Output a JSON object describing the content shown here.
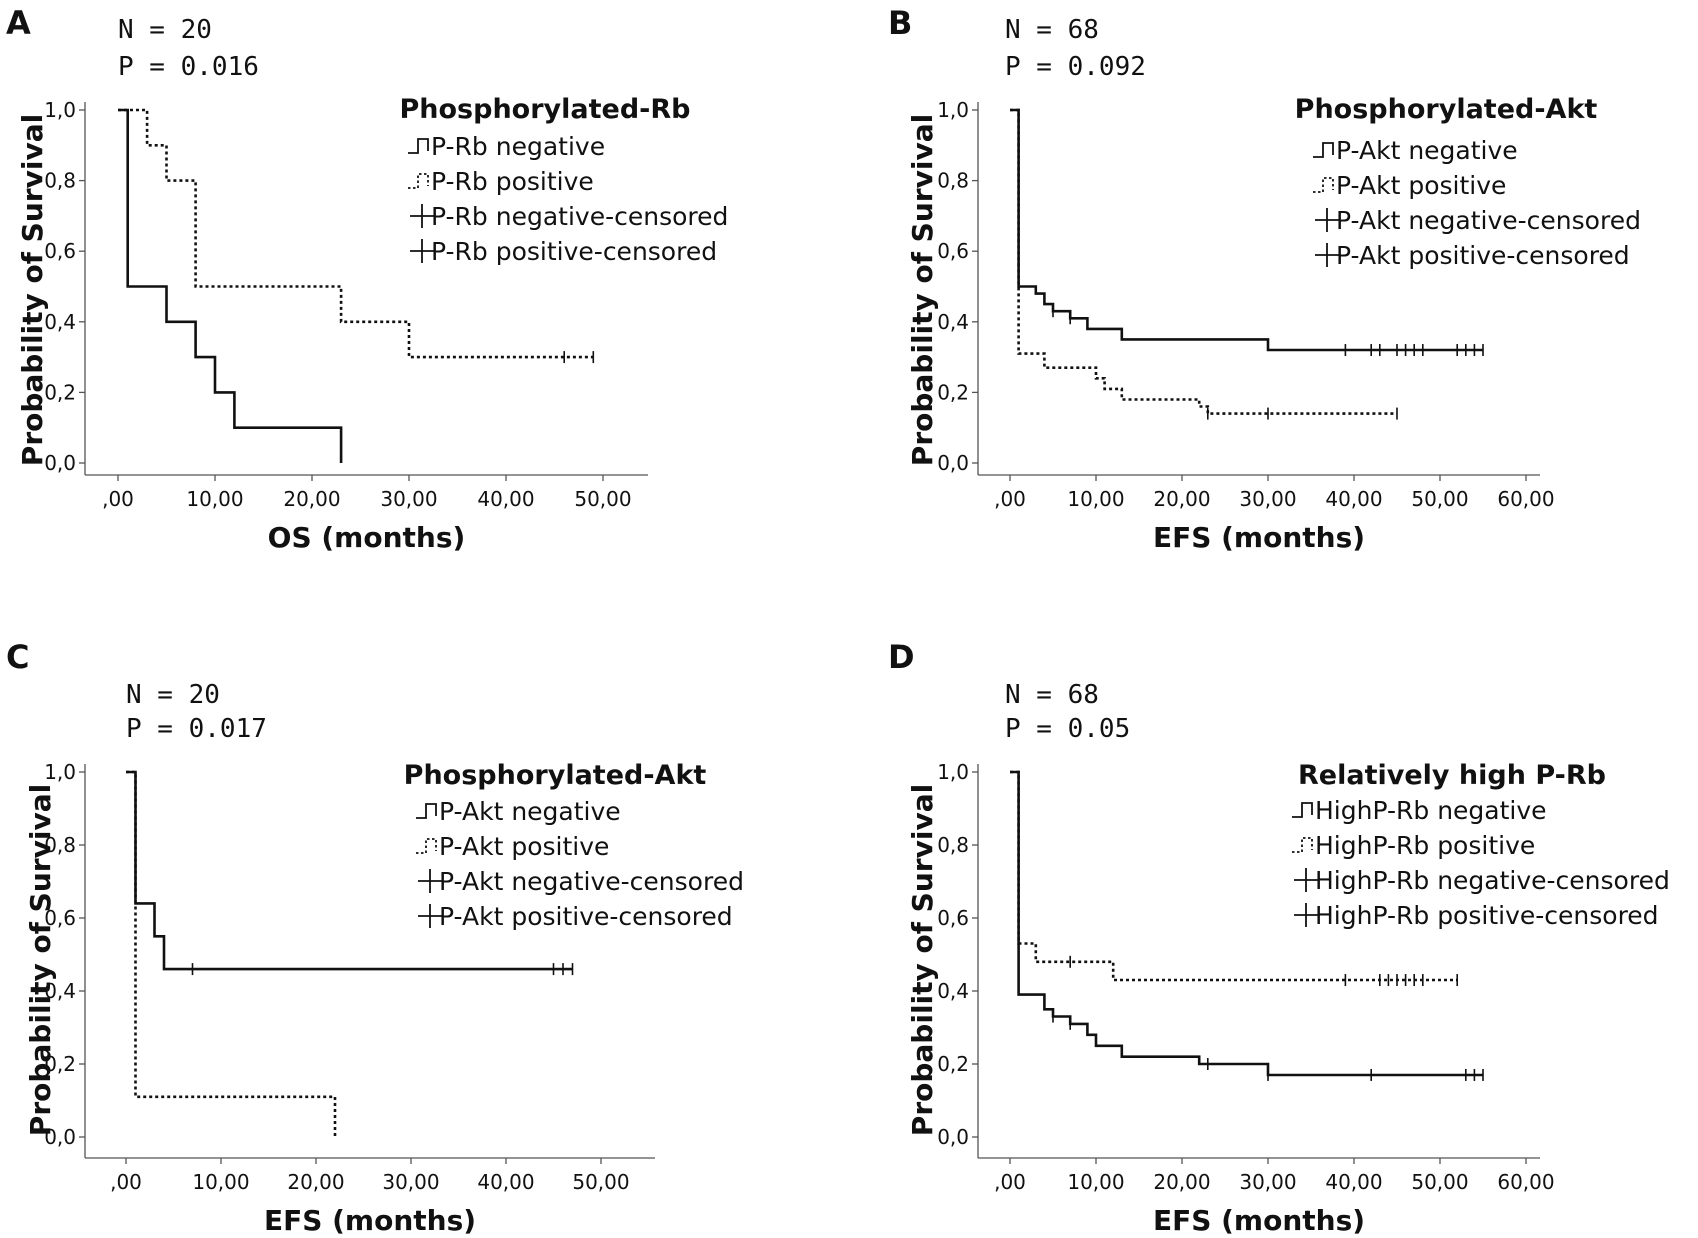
{
  "chart_data": [
    {
      "type": "line",
      "panel_label": "A",
      "stats": [
        "N = 20",
        "P = 0.016"
      ],
      "legend": {
        "title": "Phosphorylated-Rb",
        "entries": [
          {
            "label": "P-Rb negative",
            "glyph": "step-solid"
          },
          {
            "label": "P-Rb positive",
            "glyph": "step-dotted"
          },
          {
            "label": "P-Rb negative-censored",
            "glyph": "cross"
          },
          {
            "label": "P-Rb positive-censored",
            "glyph": "cross"
          }
        ]
      },
      "xlabel": "OS (months)",
      "ylabel": "Probability of Survival",
      "xlim": [
        -3,
        54
      ],
      "ylim": [
        0,
        1
      ],
      "xticks": [
        0,
        10,
        20,
        30,
        40,
        50
      ],
      "xtick_labels": [
        ",00",
        "10,00",
        "20,00",
        "30,00",
        "40,00",
        "50,00"
      ],
      "yticks": [
        0,
        0.2,
        0.4,
        0.6,
        0.8,
        1.0
      ],
      "ytick_labels": [
        "0,0",
        "0,2",
        "0,4",
        "0,6",
        "0,8",
        "1,0"
      ],
      "series": [
        {
          "style": "solid",
          "x": [
            0,
            1,
            1,
            5,
            5,
            8,
            8,
            10,
            10,
            12,
            12,
            23,
            23
          ],
          "y": [
            1.0,
            1.0,
            0.5,
            0.5,
            0.4,
            0.4,
            0.3,
            0.3,
            0.2,
            0.2,
            0.1,
            0.1,
            0.0
          ],
          "censored": []
        },
        {
          "style": "dotted",
          "x": [
            0,
            3,
            3,
            5,
            5,
            8,
            8,
            23,
            23,
            30,
            30,
            49
          ],
          "y": [
            1.0,
            1.0,
            0.9,
            0.9,
            0.8,
            0.8,
            0.5,
            0.5,
            0.4,
            0.4,
            0.3,
            0.3
          ],
          "censored": [
            {
              "x": 46,
              "y": 0.3
            },
            {
              "x": 49,
              "y": 0.3
            }
          ]
        }
      ]
    },
    {
      "type": "line",
      "panel_label": "B",
      "stats": [
        "N = 68",
        "P = 0.092"
      ],
      "legend": {
        "title": "Phosphorylated-Akt",
        "entries": [
          {
            "label": "P-Akt negative",
            "glyph": "step-solid"
          },
          {
            "label": "P-Akt positive",
            "glyph": "step-dotted"
          },
          {
            "label": "P-Akt negative-censored",
            "glyph": "cross"
          },
          {
            "label": "P-Akt positive-censored",
            "glyph": "cross"
          }
        ]
      },
      "xlabel": "EFS (months)",
      "ylabel": "Probability of Survival",
      "xlim": [
        -3,
        63
      ],
      "ylim": [
        0,
        1
      ],
      "xticks": [
        0,
        10,
        20,
        30,
        40,
        50,
        60
      ],
      "xtick_labels": [
        ",00",
        "10,00",
        "20,00",
        "30,00",
        "40,00",
        "50,00",
        "60,00"
      ],
      "yticks": [
        0,
        0.2,
        0.4,
        0.6,
        0.8,
        1.0
      ],
      "ytick_labels": [
        "0,0",
        "0,2",
        "0,4",
        "0,6",
        "0,8",
        "1,0"
      ],
      "series": [
        {
          "style": "solid",
          "x": [
            0,
            1,
            1,
            3,
            3,
            4,
            4,
            5,
            5,
            7,
            7,
            9,
            9,
            13,
            13,
            30,
            30,
            55
          ],
          "y": [
            1.0,
            1.0,
            0.5,
            0.5,
            0.48,
            0.48,
            0.45,
            0.45,
            0.43,
            0.43,
            0.41,
            0.41,
            0.38,
            0.38,
            0.35,
            0.35,
            0.32,
            0.32
          ],
          "censored": [
            {
              "x": 5,
              "y": 0.43
            },
            {
              "x": 7,
              "y": 0.41
            },
            {
              "x": 39,
              "y": 0.32
            },
            {
              "x": 42,
              "y": 0.32
            },
            {
              "x": 43,
              "y": 0.32
            },
            {
              "x": 45,
              "y": 0.32
            },
            {
              "x": 46,
              "y": 0.32
            },
            {
              "x": 47,
              "y": 0.32
            },
            {
              "x": 48,
              "y": 0.32
            },
            {
              "x": 52,
              "y": 0.32
            },
            {
              "x": 53,
              "y": 0.32
            },
            {
              "x": 54,
              "y": 0.32
            },
            {
              "x": 55,
              "y": 0.32
            }
          ]
        },
        {
          "style": "dotted",
          "x": [
            0,
            1,
            1,
            4,
            4,
            10,
            10,
            11,
            11,
            13,
            13,
            22,
            22,
            23,
            23,
            45
          ],
          "y": [
            1.0,
            1.0,
            0.31,
            0.31,
            0.27,
            0.27,
            0.24,
            0.24,
            0.21,
            0.21,
            0.18,
            0.18,
            0.16,
            0.16,
            0.14,
            0.14
          ],
          "censored": [
            {
              "x": 23,
              "y": 0.14
            },
            {
              "x": 30,
              "y": 0.14
            },
            {
              "x": 45,
              "y": 0.14
            }
          ]
        }
      ]
    },
    {
      "type": "line",
      "panel_label": "C",
      "stats": [
        "N = 20",
        "P = 0.017"
      ],
      "legend": {
        "title": "Phosphorylated-Akt",
        "entries": [
          {
            "label": "P-Akt negative",
            "glyph": "step-solid"
          },
          {
            "label": "P-Akt positive",
            "glyph": "step-dotted"
          },
          {
            "label": "P-Akt negative-censored",
            "glyph": "cross"
          },
          {
            "label": "P-Akt positive-censored",
            "glyph": "cross"
          }
        ]
      },
      "xlabel": "EFS (months)",
      "ylabel": "Probability of Survival",
      "xlim": [
        -3,
        54
      ],
      "ylim": [
        0,
        1
      ],
      "xticks": [
        0,
        10,
        20,
        30,
        40,
        50
      ],
      "xtick_labels": [
        ",00",
        "10,00",
        "20,00",
        "30,00",
        "40,00",
        "50,00"
      ],
      "yticks": [
        0,
        0.2,
        0.4,
        0.6,
        0.8,
        1.0
      ],
      "ytick_labels": [
        "0,0",
        "0,2",
        "0,4",
        "0,6",
        "0,8",
        "1,0"
      ],
      "series": [
        {
          "style": "solid",
          "x": [
            0,
            1,
            1,
            3,
            3,
            4,
            4,
            47
          ],
          "y": [
            1.0,
            1.0,
            0.64,
            0.64,
            0.55,
            0.55,
            0.46,
            0.46
          ],
          "censored": [
            {
              "x": 7,
              "y": 0.46
            },
            {
              "x": 45,
              "y": 0.46
            },
            {
              "x": 46,
              "y": 0.46
            },
            {
              "x": 47,
              "y": 0.46
            }
          ]
        },
        {
          "style": "dotted",
          "x": [
            0,
            1,
            1,
            22,
            22
          ],
          "y": [
            1.0,
            1.0,
            0.11,
            0.11,
            0.0
          ],
          "censored": []
        }
      ]
    },
    {
      "type": "line",
      "panel_label": "D",
      "stats": [
        "N = 68",
        "P = 0.05"
      ],
      "legend": {
        "title": "Relatively high P-Rb",
        "entries": [
          {
            "label": "HighP-Rb negative",
            "glyph": "step-solid"
          },
          {
            "label": "HighP-Rb positive",
            "glyph": "step-dotted"
          },
          {
            "label": "HighP-Rb negative-censored",
            "glyph": "cross"
          },
          {
            "label": "HighP-Rb positive-censored",
            "glyph": "cross"
          }
        ]
      },
      "xlabel": "EFS (months)",
      "ylabel": "Probability of Survival",
      "xlim": [
        -3,
        63
      ],
      "ylim": [
        0,
        1
      ],
      "xticks": [
        0,
        10,
        20,
        30,
        40,
        50,
        60
      ],
      "xtick_labels": [
        ",00",
        "10,00",
        "20,00",
        "30,00",
        "40,00",
        "50,00",
        "60,00"
      ],
      "yticks": [
        0,
        0.2,
        0.4,
        0.6,
        0.8,
        1.0
      ],
      "ytick_labels": [
        "0,0",
        "0,2",
        "0,4",
        "0,6",
        "0,8",
        "1,0"
      ],
      "series": [
        {
          "style": "solid",
          "x": [
            0,
            1,
            1,
            4,
            4,
            5,
            5,
            7,
            7,
            9,
            9,
            10,
            10,
            13,
            13,
            22,
            22,
            30,
            30,
            55
          ],
          "y": [
            1.0,
            1.0,
            0.39,
            0.39,
            0.35,
            0.35,
            0.33,
            0.33,
            0.31,
            0.31,
            0.28,
            0.28,
            0.25,
            0.25,
            0.22,
            0.22,
            0.2,
            0.2,
            0.17,
            0.17
          ],
          "censored": [
            {
              "x": 5,
              "y": 0.33
            },
            {
              "x": 7,
              "y": 0.31
            },
            {
              "x": 23,
              "y": 0.2
            },
            {
              "x": 30,
              "y": 0.17
            },
            {
              "x": 42,
              "y": 0.17
            },
            {
              "x": 53,
              "y": 0.17
            },
            {
              "x": 54,
              "y": 0.17
            },
            {
              "x": 55,
              "y": 0.17
            }
          ]
        },
        {
          "style": "dotted",
          "x": [
            0,
            1,
            1,
            3,
            3,
            12,
            12,
            52
          ],
          "y": [
            1.0,
            1.0,
            0.53,
            0.53,
            0.48,
            0.48,
            0.43,
            0.43
          ],
          "censored": [
            {
              "x": 7,
              "y": 0.48
            },
            {
              "x": 39,
              "y": 0.43
            },
            {
              "x": 43,
              "y": 0.43
            },
            {
              "x": 44,
              "y": 0.43
            },
            {
              "x": 45,
              "y": 0.43
            },
            {
              "x": 46,
              "y": 0.43
            },
            {
              "x": 47,
              "y": 0.43
            },
            {
              "x": 48,
              "y": 0.43
            },
            {
              "x": 52,
              "y": 0.43
            }
          ]
        }
      ]
    }
  ]
}
